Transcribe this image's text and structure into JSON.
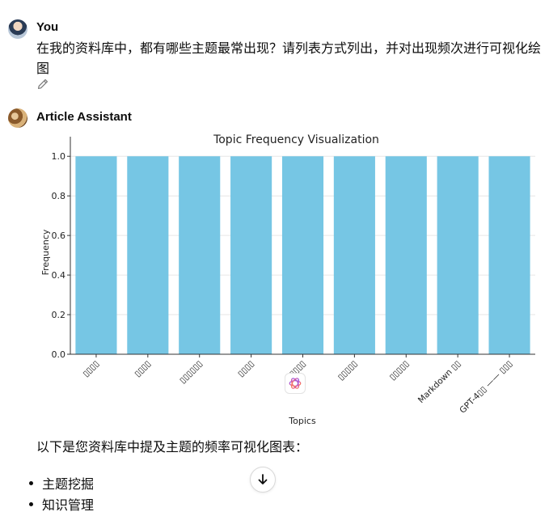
{
  "user_message": {
    "author": "You",
    "text": "在我的资料库中，都有哪些主题最常出现？请列表方式列出，并对出现频次进行可视化绘图"
  },
  "assistant_message": {
    "author": "Article Assistant",
    "intro": "以下是您资料库中提及主题的频率可视化图表：",
    "bullets": [
      "主题挖掘",
      "知识管理"
    ]
  },
  "icons": {
    "edit": "pencil-icon",
    "scroll": "arrow-down-icon",
    "logo": "openai-logo-icon"
  },
  "colors": {
    "bar": "#76c6e4",
    "text": "#0d0d0d"
  },
  "chart_data": {
    "type": "bar",
    "title": "Topic Frequency Visualization",
    "xlabel": "Topics",
    "ylabel": "Frequency",
    "categories": [
      "主题挖掘",
      "知识管理",
      "文章主题分类",
      "图表绘制",
      "数据分析",
      "知识库管理",
      "数据可视化",
      "Markdown 格式",
      "GPT-4模型 —— 新功能"
    ],
    "tick_labels": [
      "▯▯▯▯",
      "▯▯▯▯",
      "▯▯▯▯▯▯",
      "▯▯▯▯",
      "▯▯▯▯",
      "▯▯▯▯▯",
      "▯▯▯▯▯",
      "Markdown ▯▯",
      "GPT-4▯▯ —— ▯▯▯"
    ],
    "values": [
      1,
      1,
      1,
      1,
      1,
      1,
      1,
      1,
      1
    ],
    "ylim": [
      0,
      1.05
    ],
    "yticks": [
      "0.0",
      "0.2",
      "0.4",
      "0.6",
      "0.8",
      "1.0"
    ],
    "grid": true
  }
}
